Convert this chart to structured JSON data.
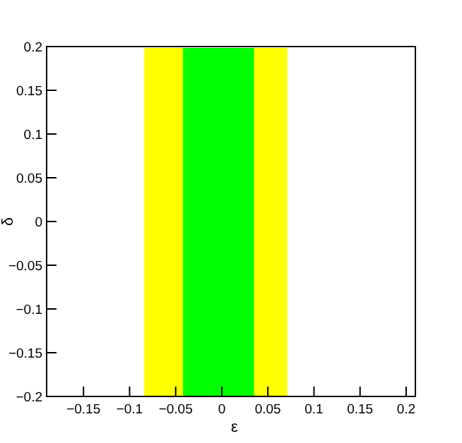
{
  "chart_data": {
    "type": "area",
    "xlabel": "ε",
    "ylabel": "δ",
    "bands": [
      {
        "axis": "x",
        "from": -0.084,
        "to": 0.071,
        "color": "#ffff00"
      },
      {
        "axis": "x",
        "from": -0.042,
        "to": 0.035,
        "color": "#00ff00"
      }
    ],
    "xlim": [
      -0.19,
      0.21
    ],
    "xticks": [
      -0.15,
      -0.1,
      -0.05,
      0,
      0.05,
      0.1,
      0.15,
      0.2
    ],
    "ylim": [
      -0.2,
      0.2
    ],
    "yticks": [
      -0.2,
      -0.15,
      -0.1,
      -0.05,
      0,
      0.05,
      0.1,
      0.15,
      0.2
    ],
    "grid": false
  }
}
